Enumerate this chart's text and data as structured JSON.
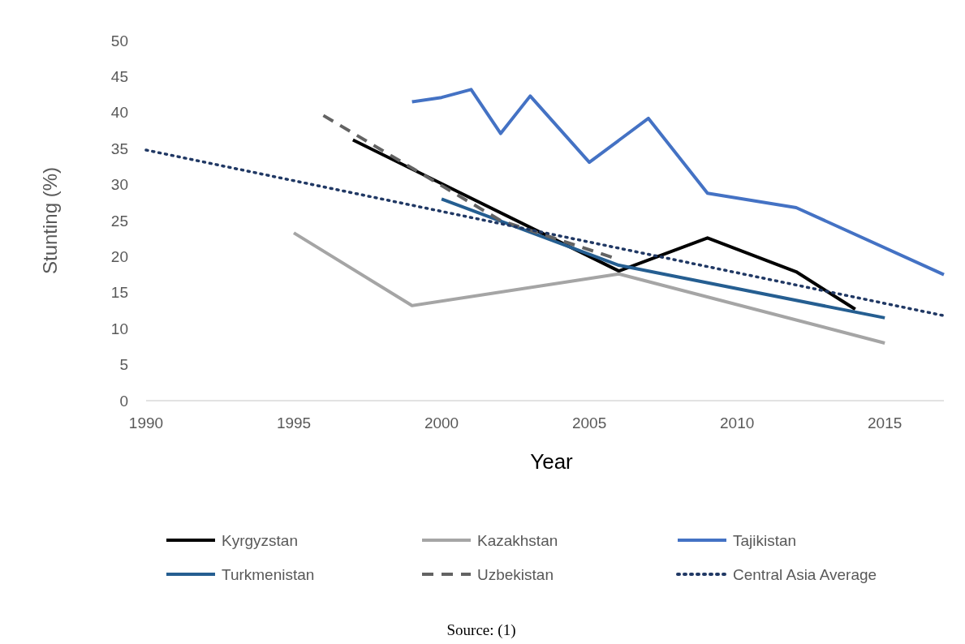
{
  "chart_data": {
    "type": "line",
    "xlabel": "Year",
    "ylabel": "Stunting (%)",
    "xlim": [
      1990,
      2017
    ],
    "xticks": [
      1990,
      1995,
      2000,
      2005,
      2010,
      2015
    ],
    "ylim": [
      0,
      50
    ],
    "yticks": [
      0,
      5,
      10,
      15,
      20,
      25,
      30,
      35,
      40,
      45,
      50
    ],
    "grid": false,
    "legend": "bottom",
    "marker": "none",
    "annotations": [
      "Source: (1)"
    ],
    "series": [
      {
        "name": "Kyrgyzstan",
        "color": "#000000",
        "line_style": "solid",
        "x": [
          1997,
          2006,
          2009,
          2012,
          2014
        ],
        "values": [
          36.2,
          18.0,
          22.6,
          17.9,
          12.7
        ]
      },
      {
        "name": "Kazakhstan",
        "color": "#a5a5a5",
        "line_style": "solid",
        "x": [
          1995,
          1999,
          2006,
          2015
        ],
        "values": [
          23.3,
          13.2,
          17.6,
          8.0
        ]
      },
      {
        "name": "Tajikistan",
        "color": "#4472c4",
        "line_style": "solid",
        "x": [
          1999,
          2000,
          2001,
          2002,
          2003,
          2005,
          2007,
          2009,
          2012,
          2017
        ],
        "values": [
          41.5,
          42.1,
          43.2,
          37.1,
          42.3,
          33.1,
          39.2,
          28.8,
          26.8,
          17.5
        ]
      },
      {
        "name": "Turkmenistan",
        "color": "#255e91",
        "line_style": "solid",
        "x": [
          2000,
          2006,
          2015
        ],
        "values": [
          28.0,
          18.8,
          11.5
        ]
      },
      {
        "name": "Uzbekistan",
        "color": "#636363",
        "line_style": "dashed",
        "x": [
          1996,
          2002,
          2006
        ],
        "values": [
          39.6,
          25.0,
          19.6
        ]
      },
      {
        "name": "Central Asia Average",
        "color": "#203864",
        "line_style": "dotted",
        "x": [
          1990,
          2017
        ],
        "values": [
          34.8,
          11.8
        ]
      }
    ]
  }
}
